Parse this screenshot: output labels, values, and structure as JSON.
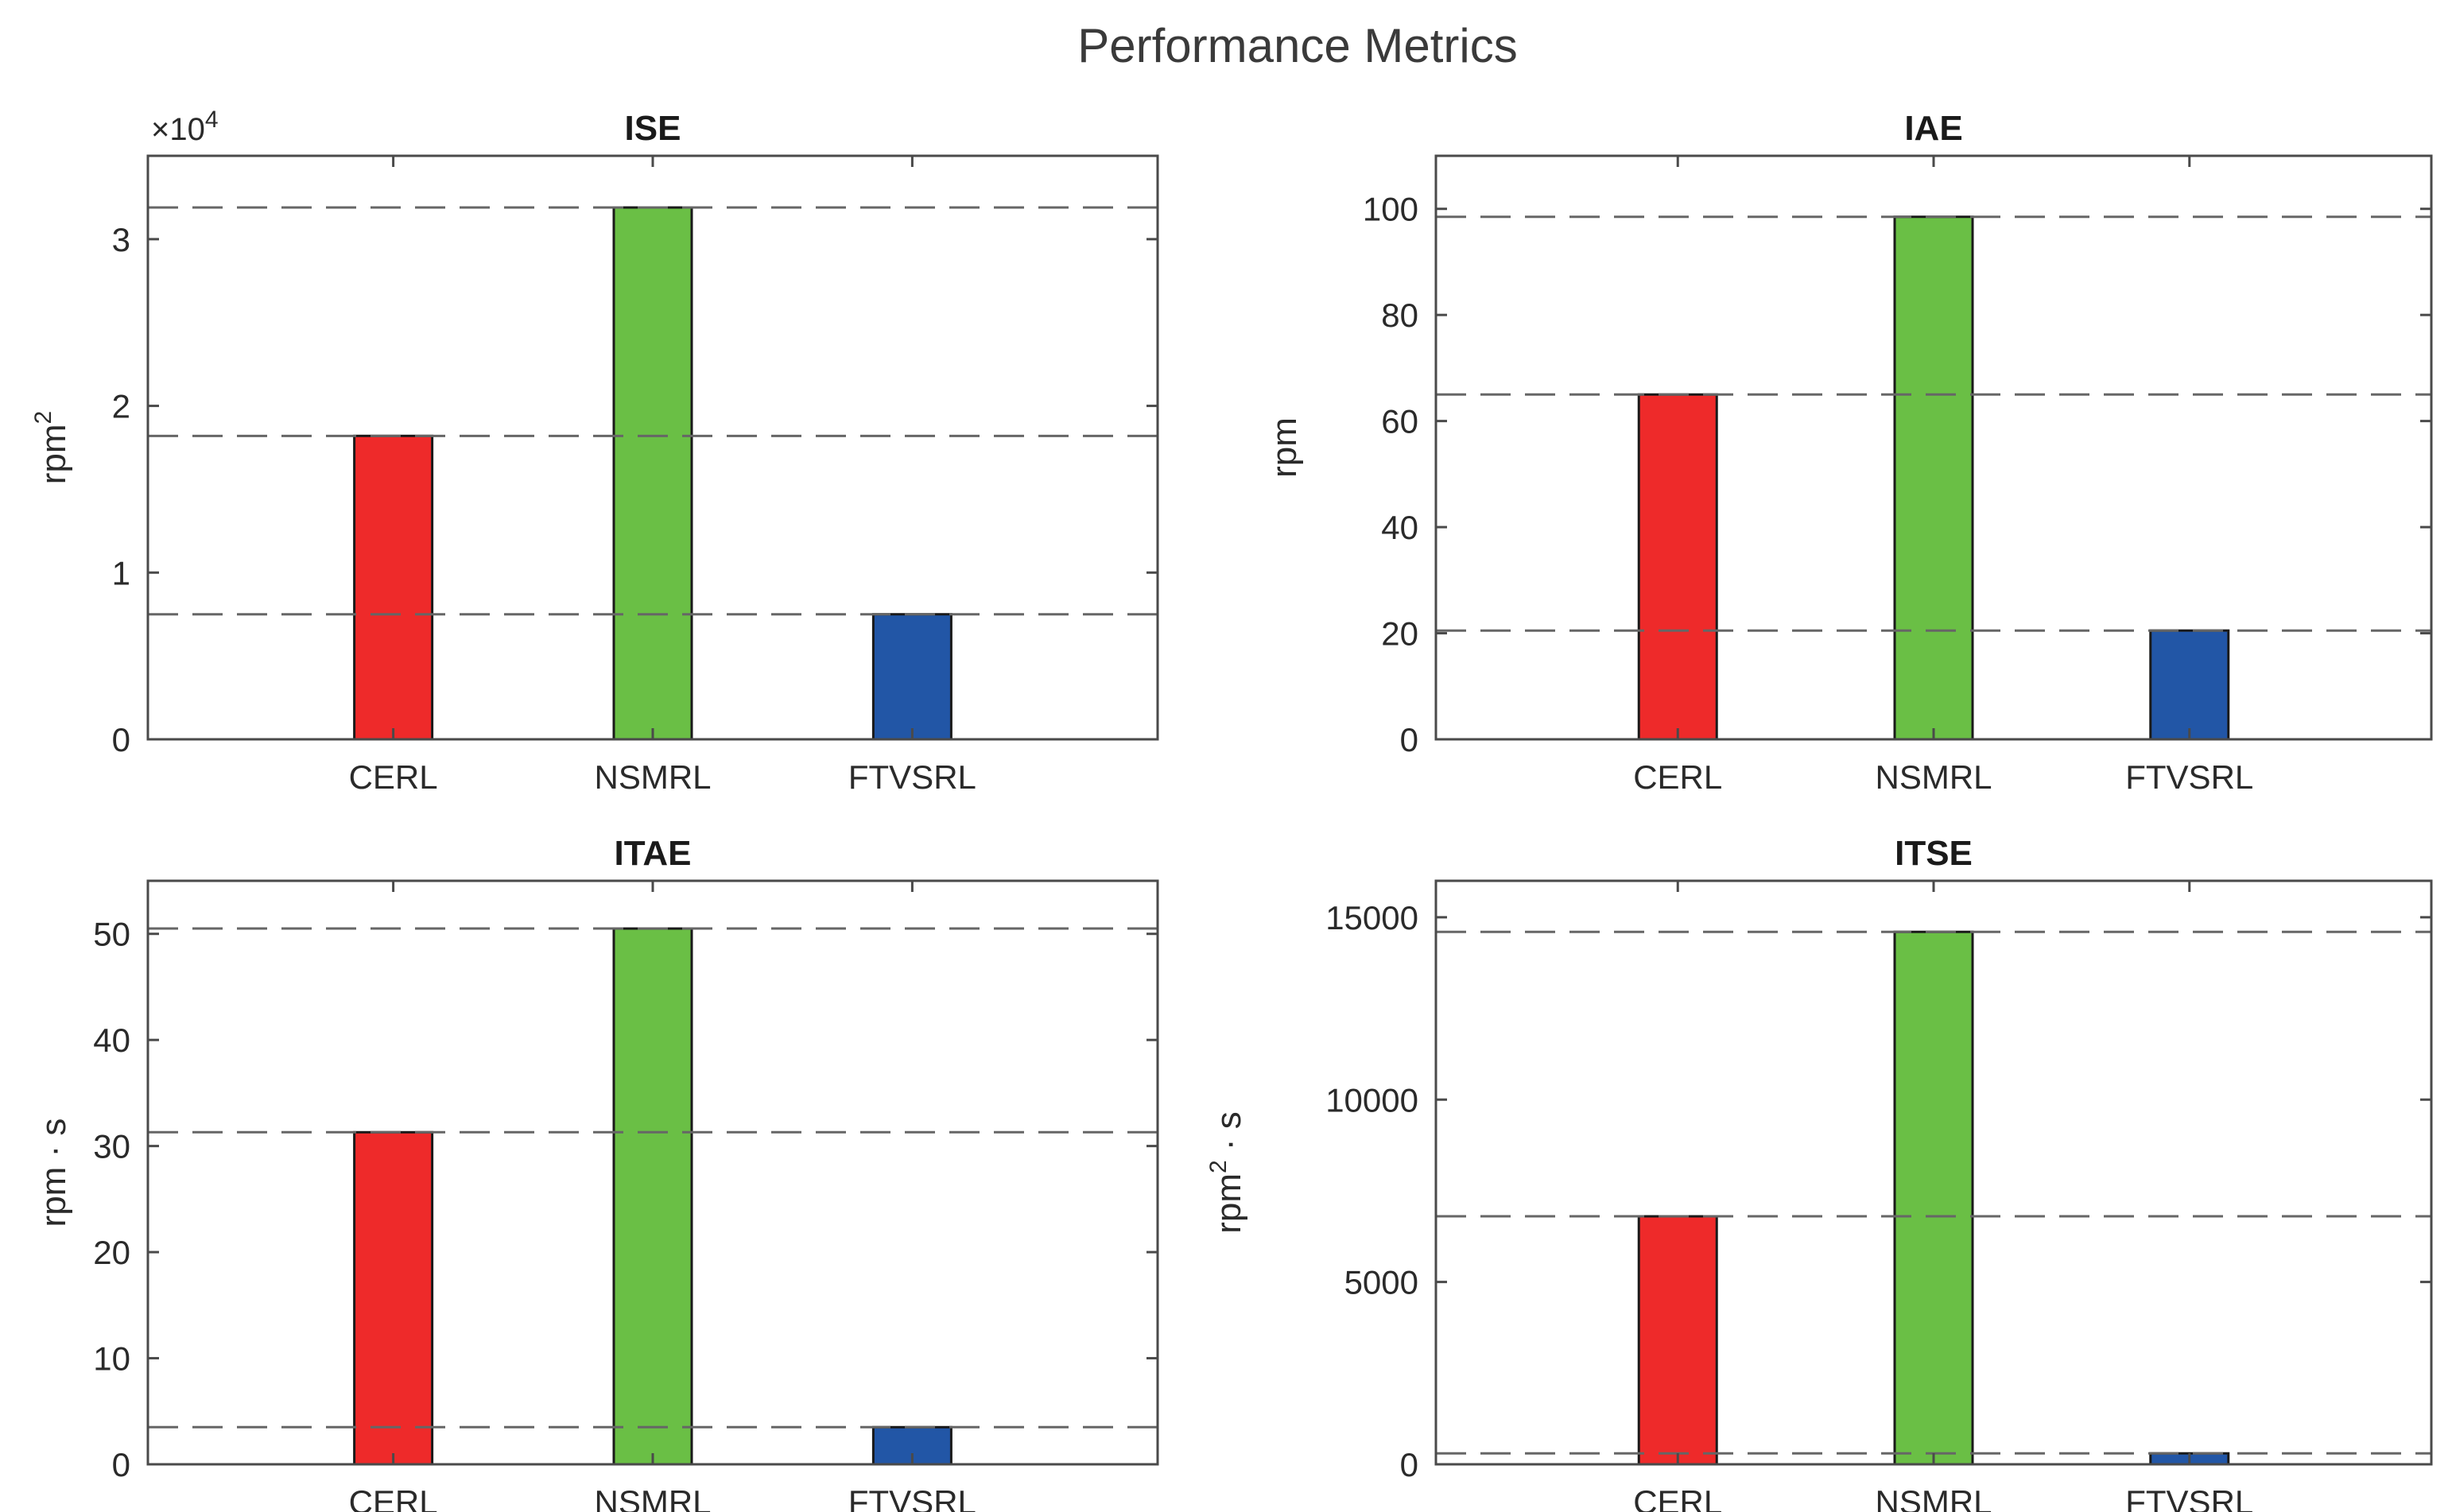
{
  "figure_title": "Performance Metrics",
  "colors": {
    "CERL": "#ee2a2a",
    "NSMRL": "#6abf45",
    "FTVSRL": "#2256a6",
    "axis": "#4a4a4a",
    "ref_line": "#666666"
  },
  "chart_data": [
    {
      "type": "bar",
      "title": "ISE",
      "categories": [
        "CERL",
        "NSMRL",
        "FTVSRL"
      ],
      "values": [
        18200,
        31900,
        7500
      ],
      "ylabel": "rpm",
      "ylabel_sup": "2",
      "ylabel_suffix": "",
      "ylim": [
        0,
        35000
      ],
      "yticks": [
        0,
        10000,
        20000,
        30000
      ],
      "ytick_labels": [
        "0",
        "1",
        "2",
        "3"
      ],
      "multiplier_prefix": "×10",
      "multiplier_exp": "4",
      "reference_lines": "dashed at each bar value"
    },
    {
      "type": "bar",
      "title": "IAE",
      "categories": [
        "CERL",
        "NSMRL",
        "FTVSRL"
      ],
      "values": [
        65,
        98.5,
        20.5
      ],
      "ylabel": "rpm",
      "ylabel_sup": "",
      "ylabel_suffix": "",
      "ylim": [
        0,
        110
      ],
      "yticks": [
        0,
        20,
        40,
        60,
        80,
        100
      ],
      "ytick_labels": [
        "0",
        "20",
        "40",
        "60",
        "80",
        "100"
      ],
      "reference_lines": "dashed at each bar value"
    },
    {
      "type": "bar",
      "title": "ITAE",
      "categories": [
        "CERL",
        "NSMRL",
        "FTVSRL"
      ],
      "values": [
        31.3,
        50.5,
        3.5
      ],
      "ylabel": "rpm · s",
      "ylabel_sup": "",
      "ylabel_suffix": "",
      "ylim": [
        0,
        55
      ],
      "yticks": [
        0,
        10,
        20,
        30,
        40,
        50
      ],
      "ytick_labels": [
        "0",
        "10",
        "20",
        "30",
        "40",
        "50"
      ],
      "reference_lines": "dashed at each bar value"
    },
    {
      "type": "bar",
      "title": "ITSE",
      "categories": [
        "CERL",
        "NSMRL",
        "FTVSRL"
      ],
      "values": [
        6800,
        14600,
        300
      ],
      "ylabel": "rpm",
      "ylabel_sup": "2",
      "ylabel_suffix": " · s",
      "ylim": [
        0,
        16000
      ],
      "yticks": [
        0,
        5000,
        10000,
        15000
      ],
      "ytick_labels": [
        "0",
        "5000",
        "10000",
        "15000"
      ],
      "reference_lines": "dashed at each bar value"
    }
  ]
}
